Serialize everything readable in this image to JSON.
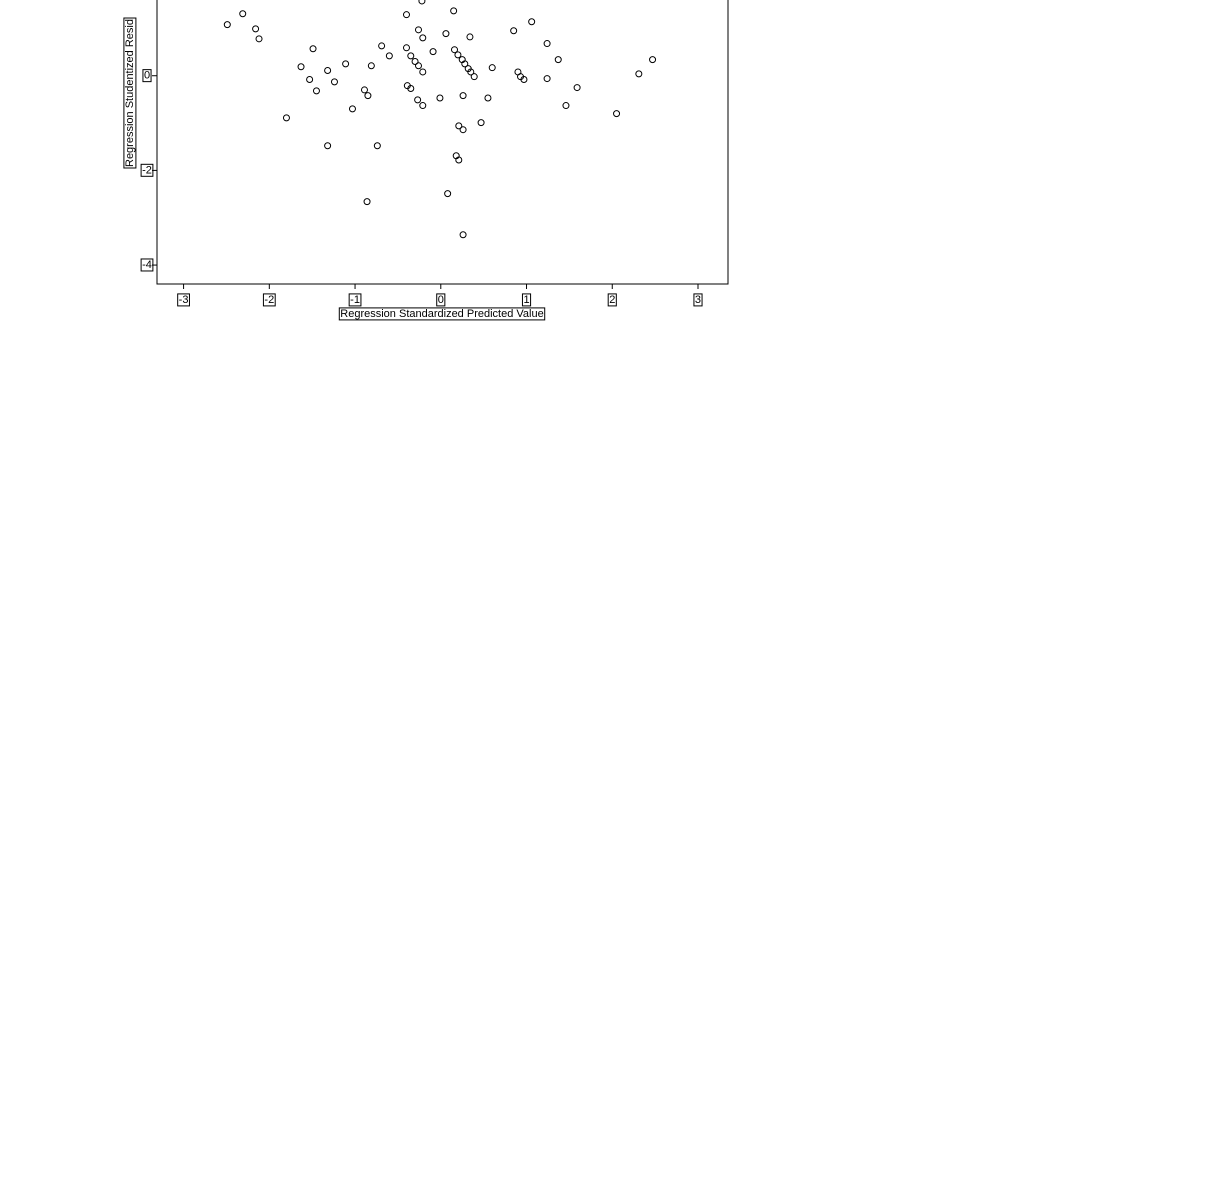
{
  "chart_data": {
    "type": "scatter",
    "x_label": "Regression Standardized Predicted Value",
    "y_label": "Regression Studentized Resid",
    "xlim": [
      -3.31,
      3.35
    ],
    "ylim": [
      -4.4,
      1.6
    ],
    "xticks": [
      -3,
      -2,
      -1,
      0,
      1,
      2,
      3
    ],
    "yticks": [
      -4,
      -2,
      0
    ],
    "color": "#000000",
    "x": [
      -2.49,
      -2.31,
      -2.16,
      -2.12,
      -1.8,
      -1.63,
      -1.53,
      -1.49,
      -1.45,
      -1.32,
      -1.32,
      -1.24,
      -1.11,
      -1.03,
      -0.89,
      -0.86,
      -0.85,
      -0.81,
      -0.74,
      -0.69,
      -0.6,
      -0.4,
      -0.4,
      -0.39,
      -0.35,
      -0.35,
      -0.3,
      -0.27,
      -0.26,
      -0.26,
      -0.22,
      -0.21,
      -0.21,
      -0.21,
      -0.09,
      -0.01,
      0.06,
      0.08,
      0.15,
      0.16,
      0.2,
      0.18,
      0.21,
      0.21,
      0.25,
      0.26,
      0.26,
      0.26,
      0.28,
      0.32,
      0.34,
      0.35,
      0.39,
      0.47,
      0.55,
      0.6,
      0.85,
      0.9,
      0.93,
      0.97,
      1.06,
      1.24,
      1.24,
      1.37,
      1.46,
      1.59,
      2.05,
      2.31,
      2.47
    ],
    "values": [
      1.08,
      1.31,
      0.99,
      0.78,
      -0.89,
      0.19,
      -0.08,
      0.57,
      -0.32,
      0.11,
      -1.48,
      -0.13,
      0.25,
      -0.7,
      -0.3,
      -2.66,
      -0.42,
      0.21,
      -1.48,
      0.63,
      0.42,
      1.29,
      0.59,
      -0.21,
      0.42,
      -0.27,
      0.3,
      -0.51,
      0.97,
      0.21,
      1.58,
      0.8,
      -0.63,
      0.08,
      0.51,
      -0.47,
      0.89,
      -2.49,
      1.37,
      0.55,
      0.44,
      -1.69,
      -1.78,
      -1.06,
      0.34,
      -1.14,
      -0.42,
      -3.36,
      0.25,
      0.15,
      0.82,
      0.08,
      -0.02,
      -0.99,
      -0.47,
      0.17,
      0.95,
      0.08,
      -0.02,
      -0.08,
      1.14,
      0.68,
      -0.06,
      0.34,
      -0.63,
      -0.25,
      -0.8,
      0.04,
      0.34
    ]
  }
}
